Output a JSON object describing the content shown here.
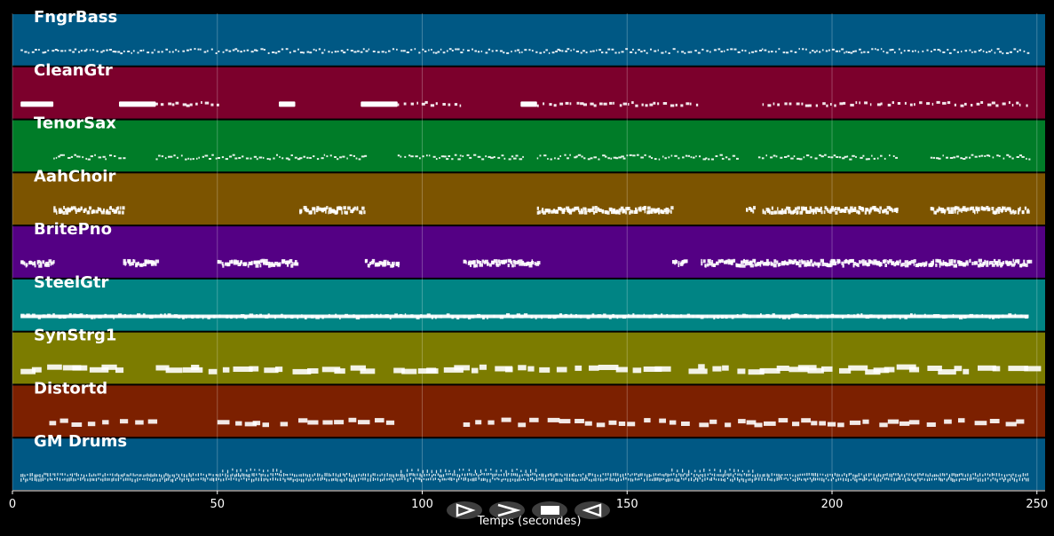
{
  "chart_data": {
    "type": "piano-roll",
    "xlabel": "Temps (secondes)",
    "xlim": [
      0,
      252
    ],
    "xticks": [
      0,
      50,
      100,
      150,
      200,
      250
    ],
    "grid": true,
    "tracks": [
      {
        "name": "FngrBass",
        "color": "#005884",
        "pattern": "dense-line",
        "noteWidth": 0.7,
        "noteHeight": 2,
        "segments": [
          [
            2,
            248
          ]
        ]
      },
      {
        "name": "CleanGtr",
        "color": "#7c002c",
        "pattern": "mixed",
        "noteWidth": 1.0,
        "noteHeight": 3,
        "blocks": [
          [
            2,
            10
          ],
          [
            26,
            35
          ],
          [
            65,
            69
          ],
          [
            85,
            94
          ],
          [
            124,
            128
          ]
        ],
        "segments": [
          [
            35,
            51
          ],
          [
            94,
            110
          ],
          [
            128,
            167
          ],
          [
            183,
            248
          ]
        ]
      },
      {
        "name": "TenorSax",
        "color": "#007c28",
        "pattern": "dense-line",
        "noteWidth": 0.8,
        "noteHeight": 2,
        "segments": [
          [
            10,
            27
          ],
          [
            35,
            70
          ],
          [
            70,
            86
          ],
          [
            94,
            125
          ],
          [
            128,
            177
          ],
          [
            182,
            216
          ],
          [
            224,
            248
          ]
        ]
      },
      {
        "name": "AahChoir",
        "color": "#7c5400",
        "pattern": "cluster",
        "noteWidth": 0.9,
        "noteHeight": 4,
        "segments": [
          [
            10,
            27
          ],
          [
            70,
            86
          ],
          [
            128,
            161
          ],
          [
            179,
            181
          ],
          [
            183,
            216
          ],
          [
            224,
            248
          ]
        ]
      },
      {
        "name": "BritePno",
        "color": "#540084",
        "pattern": "cluster",
        "noteWidth": 1.0,
        "noteHeight": 4,
        "segments": [
          [
            2,
            10
          ],
          [
            27,
            35
          ],
          [
            50,
            69
          ],
          [
            86,
            94
          ],
          [
            110,
            128
          ],
          [
            161,
            164
          ],
          [
            168,
            180
          ],
          [
            180,
            248
          ]
        ]
      },
      {
        "name": "SteelGtr",
        "color": "#008484",
        "pattern": "thick-line",
        "noteWidth": 1.5,
        "noteHeight": 4,
        "segments": [
          [
            2,
            248
          ]
        ]
      },
      {
        "name": "SynStrg1",
        "color": "#7c7c00",
        "pattern": "blocks",
        "noteWidth": 5,
        "noteHeight": 6,
        "segments": [
          [
            2,
            27
          ],
          [
            35,
            85
          ],
          [
            93,
            160
          ],
          [
            165,
            248
          ]
        ]
      },
      {
        "name": "Distortd",
        "color": "#7c2000",
        "pattern": "blocks",
        "noteWidth": 3,
        "noteHeight": 5,
        "segments": [
          [
            9,
            35
          ],
          [
            50,
            93
          ],
          [
            110,
            248
          ]
        ]
      },
      {
        "name": "GM Drums",
        "color": "#005884",
        "pattern": "drums",
        "noteWidth": 0.6,
        "noteHeight": 2,
        "segments": [
          [
            2,
            248
          ]
        ]
      }
    ]
  },
  "controls": {
    "play": "play-button",
    "fast_forward": "fast-forward-button",
    "stop": "stop-button",
    "rewind": "rewind-button"
  }
}
